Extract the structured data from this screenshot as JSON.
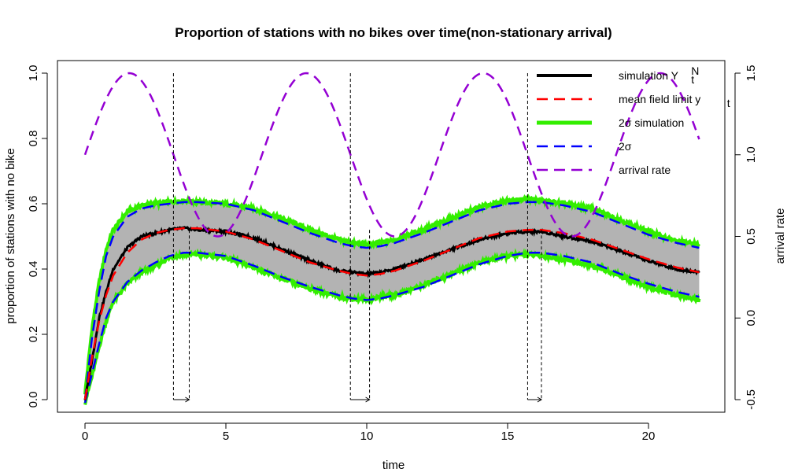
{
  "chart_data": {
    "type": "line",
    "title": "Proportion of stations with no bikes over time(non-stationary arrival)",
    "xlabel": "time",
    "ylabel": "proportion of stations with no bike",
    "y2label": "arrival rate",
    "xlim": [
      0,
      22
    ],
    "ylim": [
      0,
      1
    ],
    "y2lim": [
      -0.5,
      1.5
    ],
    "x_ticks": [
      0,
      5,
      10,
      15,
      20
    ],
    "y_ticks": [
      0.0,
      0.2,
      0.4,
      0.6,
      0.8,
      1.0
    ],
    "y_tick_labels": [
      "0.0",
      "0.2",
      "0.4",
      "0.6",
      "0.8",
      "1.0"
    ],
    "y2_ticks": [
      -0.5,
      0.0,
      0.5,
      1.0,
      1.5
    ],
    "y2_tick_labels": [
      "-0.5",
      "0.0",
      "0.5",
      "1.0",
      "1.5"
    ],
    "t": [
      0,
      0.25,
      0.5,
      0.75,
      1.0,
      1.5,
      2.0,
      2.5,
      3.0,
      3.5,
      4.0,
      5.0,
      6.0,
      7.0,
      8.0,
      9.0,
      9.5,
      10.0,
      10.5,
      11.0,
      12.0,
      13.0,
      14.0,
      15.0,
      15.7,
      16.2,
      17.0,
      18.0,
      19.0,
      20.0,
      21.0,
      21.8
    ],
    "series": [
      {
        "name": "mean field limit y_t",
        "color": "#ff0000",
        "dash": true,
        "values": [
          0.0,
          0.13,
          0.24,
          0.32,
          0.38,
          0.45,
          0.49,
          0.51,
          0.52,
          0.525,
          0.525,
          0.515,
          0.49,
          0.455,
          0.42,
          0.395,
          0.385,
          0.38,
          0.385,
          0.395,
          0.425,
          0.46,
          0.495,
          0.515,
          0.52,
          0.52,
          0.51,
          0.49,
          0.46,
          0.43,
          0.405,
          0.39
        ]
      },
      {
        "name": "upper 2σ",
        "color": "#0000ff",
        "dash": true,
        "values": [
          0.0,
          0.19,
          0.33,
          0.44,
          0.5,
          0.56,
          0.585,
          0.595,
          0.6,
          0.605,
          0.605,
          0.6,
          0.58,
          0.545,
          0.51,
          0.48,
          0.47,
          0.465,
          0.47,
          0.48,
          0.51,
          0.545,
          0.58,
          0.6,
          0.605,
          0.605,
          0.595,
          0.575,
          0.54,
          0.505,
          0.48,
          0.465
        ]
      },
      {
        "name": "lower 2σ",
        "color": "#0000ff",
        "dash": true,
        "values": [
          -0.01,
          0.08,
          0.17,
          0.25,
          0.3,
          0.36,
          0.395,
          0.42,
          0.44,
          0.45,
          0.45,
          0.44,
          0.41,
          0.375,
          0.345,
          0.32,
          0.31,
          0.305,
          0.31,
          0.32,
          0.345,
          0.38,
          0.415,
          0.44,
          0.45,
          0.45,
          0.44,
          0.42,
          0.385,
          0.355,
          0.33,
          0.315
        ]
      },
      {
        "name": "arrival rate",
        "color": "#9400d3",
        "dash": true,
        "axis": "right",
        "function": "1 + 0.5*sin(t)"
      }
    ],
    "sim_band": {
      "upper_values": [
        0.02,
        0.22,
        0.36,
        0.46,
        0.52,
        0.575,
        0.595,
        0.6,
        0.605,
        0.61,
        0.605,
        0.6,
        0.585,
        0.555,
        0.52,
        0.49,
        0.48,
        0.475,
        0.48,
        0.49,
        0.52,
        0.555,
        0.59,
        0.61,
        0.615,
        0.61,
        0.6,
        0.585,
        0.55,
        0.515,
        0.485,
        0.475
      ],
      "lower_values": [
        -0.01,
        0.07,
        0.16,
        0.24,
        0.3,
        0.355,
        0.39,
        0.41,
        0.435,
        0.445,
        0.445,
        0.435,
        0.405,
        0.37,
        0.34,
        0.315,
        0.31,
        0.305,
        0.315,
        0.32,
        0.35,
        0.385,
        0.42,
        0.44,
        0.445,
        0.44,
        0.43,
        0.41,
        0.38,
        0.345,
        0.32,
        0.305
      ]
    },
    "simulation_path": [
      0.0,
      0.12,
      0.25,
      0.33,
      0.4,
      0.465,
      0.5,
      0.51,
      0.52,
      0.525,
      0.52,
      0.515,
      0.495,
      0.46,
      0.425,
      0.395,
      0.39,
      0.385,
      0.39,
      0.4,
      0.43,
      0.46,
      0.49,
      0.51,
      0.515,
      0.515,
      0.5,
      0.485,
      0.455,
      0.425,
      0.4,
      0.39
    ],
    "vertical_markers": [
      {
        "peak_t": 3.14,
        "lag_t": 3.7
      },
      {
        "peak_t": 9.42,
        "lag_t": 10.1
      },
      {
        "peak_t": 15.71,
        "lag_t": 16.2
      }
    ],
    "legend": {
      "position": "top-right",
      "items": [
        {
          "label": "simulation Y",
          "sup": "N",
          "sub": "t",
          "color": "#000000",
          "style": "solid",
          "width": 4
        },
        {
          "label": "mean field limit y",
          "sub": "t",
          "color": "#ff0000",
          "style": "dashed",
          "width": 2.5
        },
        {
          "label": "2σ simulation",
          "color": "#33ee00",
          "style": "solid",
          "width": 5
        },
        {
          "label": "2σ",
          "color": "#0000ff",
          "style": "dashed",
          "width": 2.5
        },
        {
          "label": "arrival rate",
          "color": "#9400d3",
          "style": "dashed",
          "width": 2.5
        }
      ]
    }
  }
}
